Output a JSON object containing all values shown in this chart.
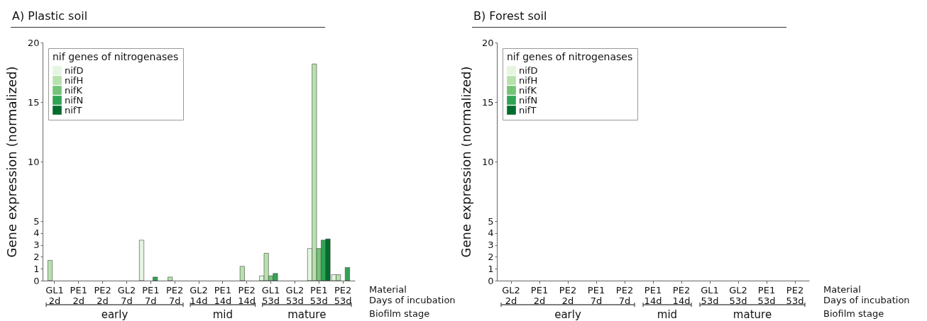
{
  "chart_data": [
    {
      "type": "bar",
      "title": "A) Plastic soil",
      "ylabel": "Gene expression (normalized)",
      "legend_title": "nif genes of nitrogenases",
      "legend": "top left",
      "categories": [
        "GL1 2d",
        "PE1 2d",
        "PE2 2d",
        "GL2 7d",
        "PE1 7d",
        "PE2 7d",
        "GL2 14d",
        "PE1 14d",
        "PE2 14d",
        "GL1 53d",
        "GL2 53d",
        "PE1 53d",
        "PE2 53d"
      ],
      "series": [
        {
          "name": "nifD",
          "color": "#e5f5e0",
          "values": [
            0,
            0,
            0,
            0,
            3.4,
            0,
            0,
            0,
            0,
            0.4,
            0,
            2.7,
            0.5
          ]
        },
        {
          "name": "nifH",
          "color": "#b7e1ad",
          "values": [
            1.7,
            0,
            0,
            0,
            0,
            0.3,
            0,
            0,
            1.2,
            2.3,
            0,
            18.2,
            0.5
          ]
        },
        {
          "name": "nifK",
          "color": "#74c476",
          "values": [
            0,
            0,
            0,
            0,
            0,
            0,
            0,
            0,
            0,
            0.4,
            0,
            2.7,
            0
          ]
        },
        {
          "name": "nifN",
          "color": "#31a354",
          "values": [
            0,
            0,
            0,
            0,
            0.3,
            0,
            0,
            0,
            0,
            0.6,
            0,
            3.4,
            1.1
          ]
        },
        {
          "name": "nifT",
          "color": "#006d2c",
          "values": [
            0,
            0,
            0,
            0,
            0,
            0,
            0,
            0,
            0,
            0,
            0,
            3.5,
            0
          ]
        }
      ],
      "ylim": [
        0,
        20
      ],
      "yticks": [
        0,
        1,
        2,
        3,
        4,
        5,
        10,
        15,
        20
      ],
      "annotations": [
        "Material",
        "Days of incubation",
        "Biofilm stage",
        "early",
        "mid",
        "mature"
      ]
    },
    {
      "type": "bar",
      "title": "B) Forest soil",
      "ylabel": "Gene expression (normalized)",
      "legend_title": "nif genes of nitrogenases",
      "legend": "top left",
      "categories": [
        "GL2 2d",
        "PE1 2d",
        "PE2 2d",
        "PE1 7d",
        "PE2 7d",
        "PE1 14d",
        "PE2 14d",
        "GL1 53d",
        "GL2 53d",
        "PE1 53d",
        "PE2 53d"
      ],
      "series": [
        {
          "name": "nifD",
          "color": "#e5f5e0",
          "values": [
            0,
            0,
            0,
            0,
            0,
            0,
            0,
            0,
            0,
            0,
            0
          ]
        },
        {
          "name": "nifH",
          "color": "#b7e1ad",
          "values": [
            0,
            0,
            0,
            0,
            0,
            0,
            0,
            0,
            0,
            0,
            0
          ]
        },
        {
          "name": "nifK",
          "color": "#74c476",
          "values": [
            0,
            0,
            0,
            0,
            0,
            0,
            0,
            0,
            0,
            0,
            0
          ]
        },
        {
          "name": "nifN",
          "color": "#31a354",
          "values": [
            0,
            0,
            0,
            0,
            0,
            0,
            0,
            0,
            0,
            0,
            0
          ]
        },
        {
          "name": "nifT",
          "color": "#006d2c",
          "values": [
            0,
            0,
            0,
            0,
            0,
            0,
            0,
            0,
            0,
            0,
            0
          ]
        }
      ],
      "ylim": [
        0,
        20
      ],
      "yticks": [
        0,
        1,
        2,
        3,
        4,
        5,
        10,
        15,
        20
      ],
      "annotations": [
        "Material",
        "Days of incubation",
        "Biofilm stage",
        "early",
        "mid",
        "mature"
      ]
    }
  ]
}
